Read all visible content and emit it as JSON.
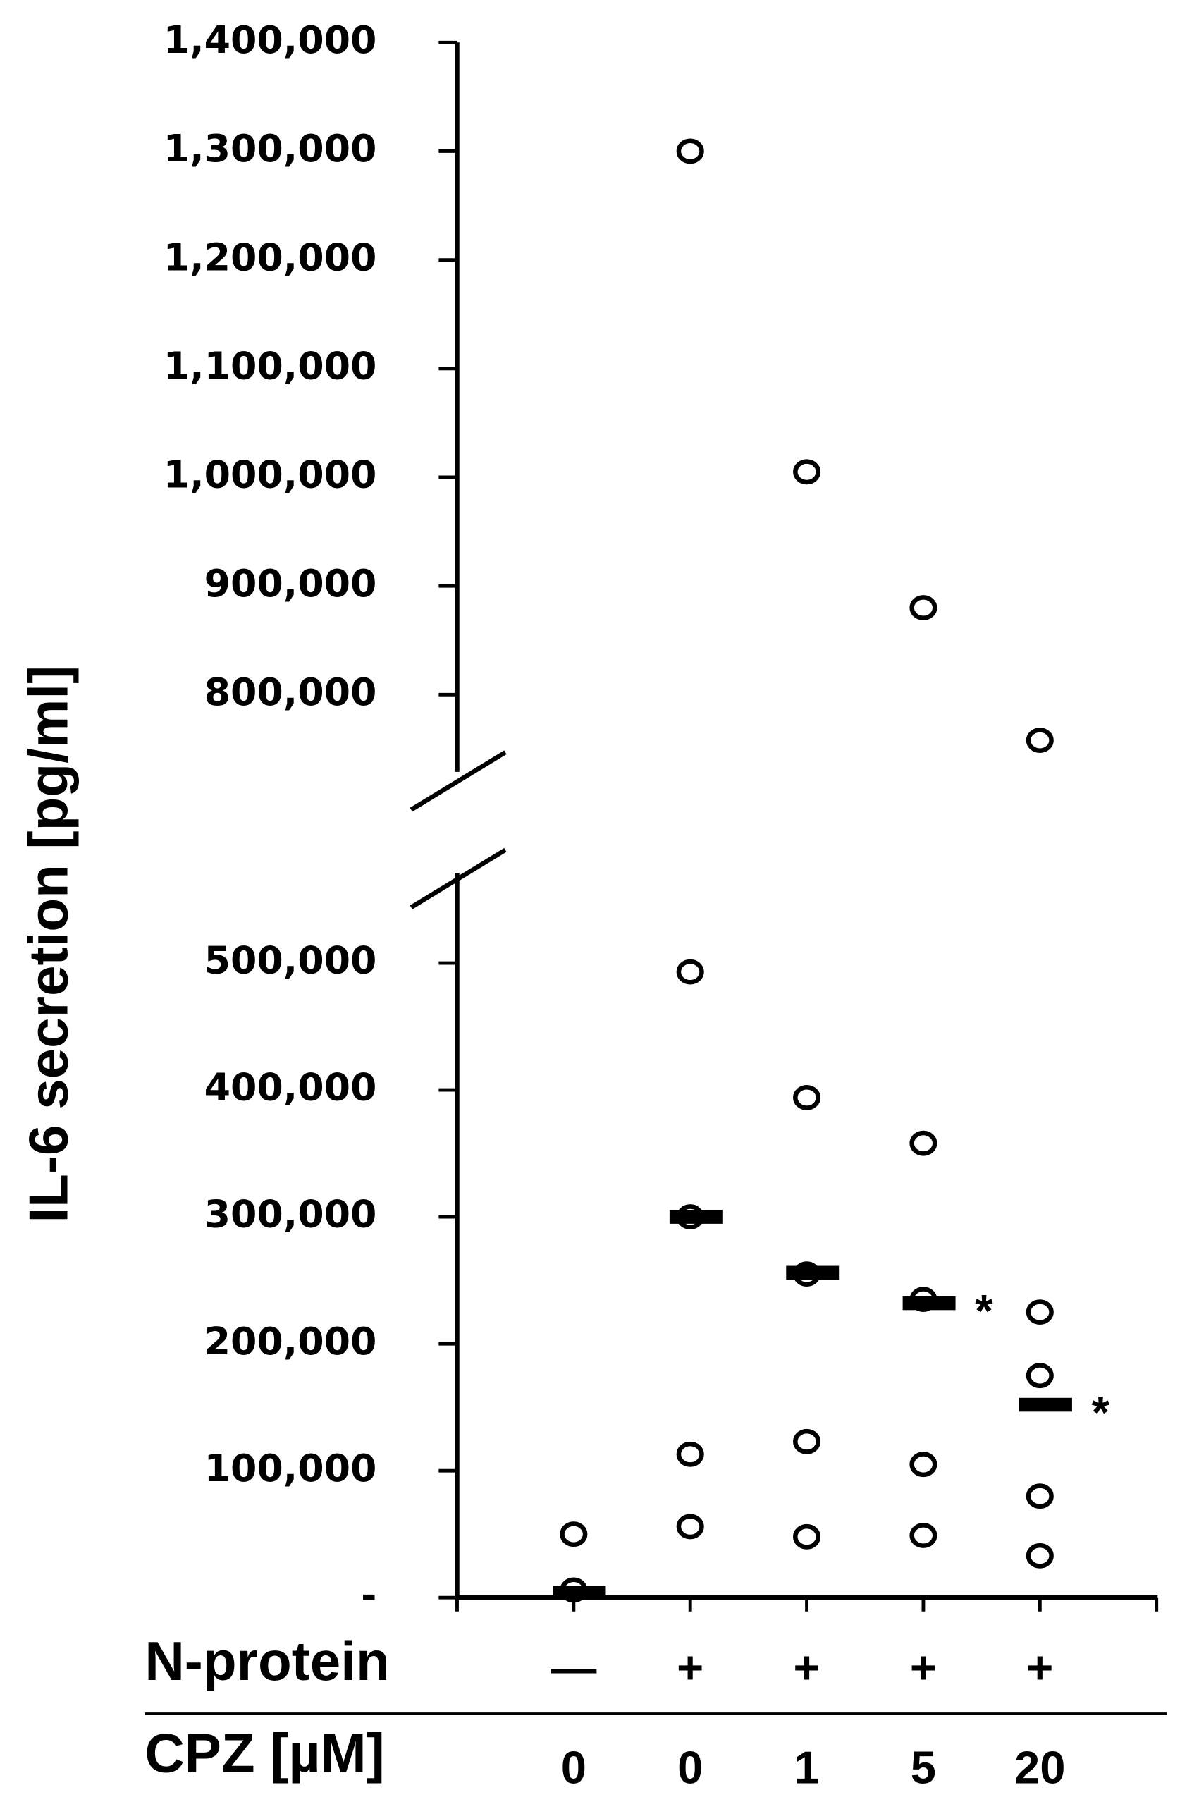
{
  "chart_data": {
    "type": "scatter",
    "y_label": "IL-6 secretion [pg/ml]",
    "row_labels": [
      "N-protein",
      "CPZ [µM]"
    ],
    "n_protein": [
      "—",
      "+",
      "+",
      "+",
      "+"
    ],
    "categories": [
      "0",
      "0",
      "1",
      "5",
      "20"
    ],
    "points": [
      [
        50000,
        6000
      ],
      [
        1300000,
        493000,
        300000,
        113000,
        56000
      ],
      [
        1005000,
        394000,
        255000,
        123000,
        48000
      ],
      [
        880000,
        358000,
        235000,
        105000,
        49000
      ],
      [
        758000,
        225000,
        175000,
        80000,
        33000
      ]
    ],
    "means": [
      4000,
      300000,
      256000,
      232000,
      152000
    ],
    "annotations": [
      null,
      null,
      null,
      "*",
      "*"
    ],
    "color": "#000000",
    "ylim": [
      0,
      1400000
    ],
    "y_break": [
      571000,
      729000
    ],
    "yticks": [
      {
        "value": 0,
        "label": "-"
      },
      {
        "value": 100000,
        "label": "100,000"
      },
      {
        "value": 200000,
        "label": "200,000"
      },
      {
        "value": 300000,
        "label": "300,000"
      },
      {
        "value": 400000,
        "label": "400,000"
      },
      {
        "value": 500000,
        "label": "500,000"
      },
      {
        "value": 800000,
        "label": "800,000"
      },
      {
        "value": 900000,
        "label": "900,000"
      },
      {
        "value": 1000000,
        "label": "1,000,000"
      },
      {
        "value": 1100000,
        "label": "1,100,000"
      },
      {
        "value": 1200000,
        "label": "1,200,000"
      },
      {
        "value": 1300000,
        "label": "1,300,000"
      },
      {
        "value": 1400000,
        "label": "1,400,000"
      }
    ]
  }
}
